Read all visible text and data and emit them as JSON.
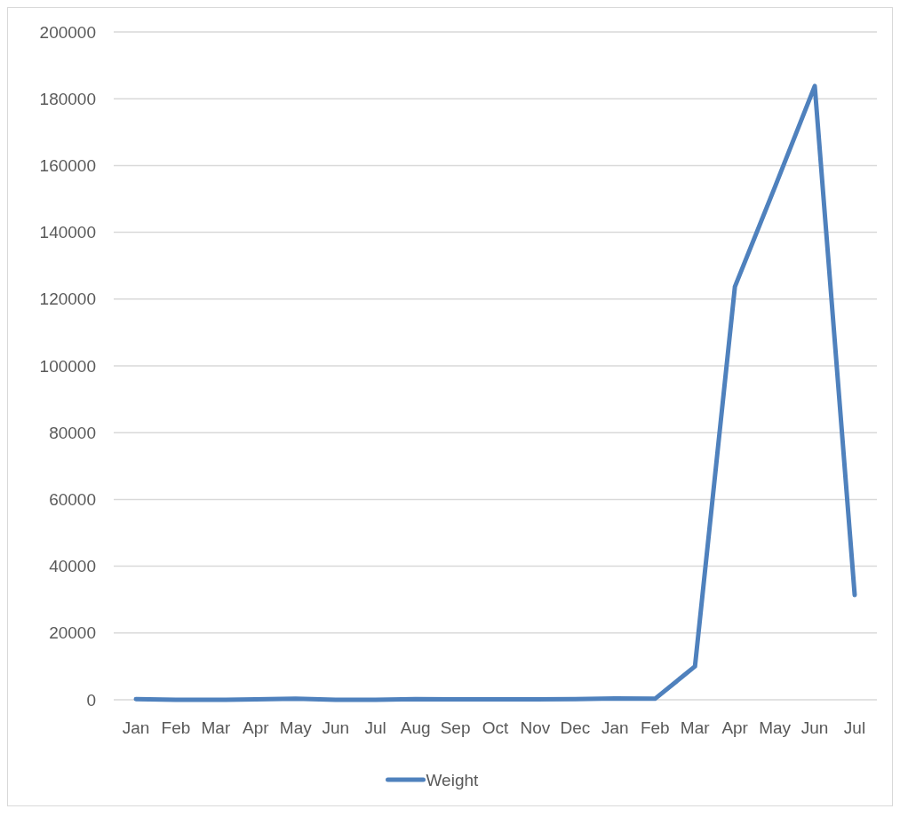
{
  "chart_data": {
    "type": "line",
    "categories": [
      "Jan",
      "Feb",
      "Mar",
      "Apr",
      "May",
      "Jun",
      "Jul",
      "Aug",
      "Sep",
      "Oct",
      "Nov",
      "Dec",
      "Jan",
      "Feb",
      "Mar",
      "Apr",
      "May",
      "Jun",
      "Jul"
    ],
    "series": [
      {
        "name": "Weight",
        "color": "#4f81bd",
        "values": [
          200,
          0,
          0,
          100,
          300,
          0,
          0,
          200,
          100,
          100,
          100,
          200,
          400,
          300,
          10000,
          123700,
          153500,
          183800,
          31400
        ]
      }
    ],
    "ylim": [
      0,
      200000
    ],
    "yticks": [
      0,
      20000,
      40000,
      60000,
      80000,
      100000,
      120000,
      140000,
      160000,
      180000,
      200000
    ],
    "grid": "y",
    "legend": "bottom",
    "line_style": "solid"
  }
}
